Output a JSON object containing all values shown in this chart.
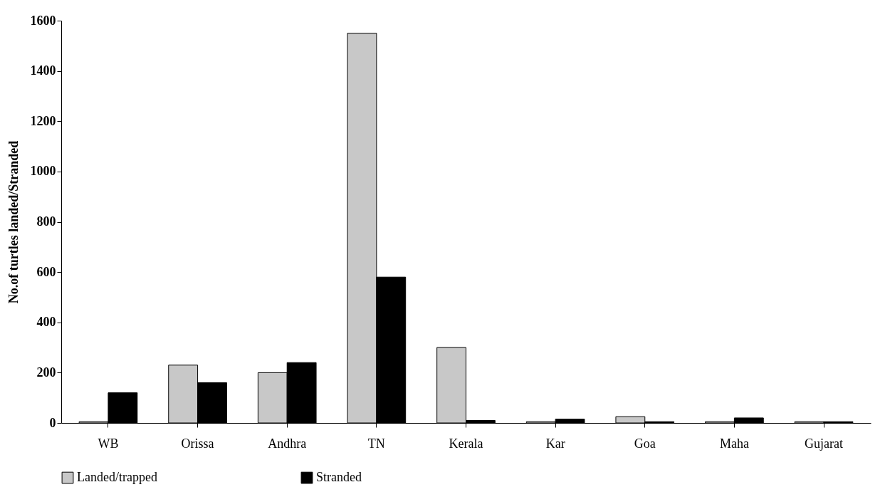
{
  "chart_data": {
    "type": "bar",
    "ylabel": "No.of turtles landed/Stranded",
    "categories": [
      "WB",
      "Orissa",
      "Andhra",
      "TN",
      "Kerala",
      "Kar",
      "Goa",
      "Maha",
      "Gujarat"
    ],
    "series": [
      {
        "name": "Landed/trapped",
        "color": "#c8c8c8",
        "values": [
          5,
          230,
          200,
          1550,
          300,
          5,
          25,
          5,
          5
        ]
      },
      {
        "name": "Stranded",
        "color": "#000000",
        "values": [
          120,
          160,
          240,
          580,
          10,
          15,
          5,
          20,
          5
        ]
      }
    ],
    "ylim": [
      0,
      1600
    ],
    "yticks": [
      0,
      200,
      400,
      600,
      800,
      1000,
      1200,
      1400,
      1600
    ],
    "grid": false,
    "legend": "bottom"
  }
}
